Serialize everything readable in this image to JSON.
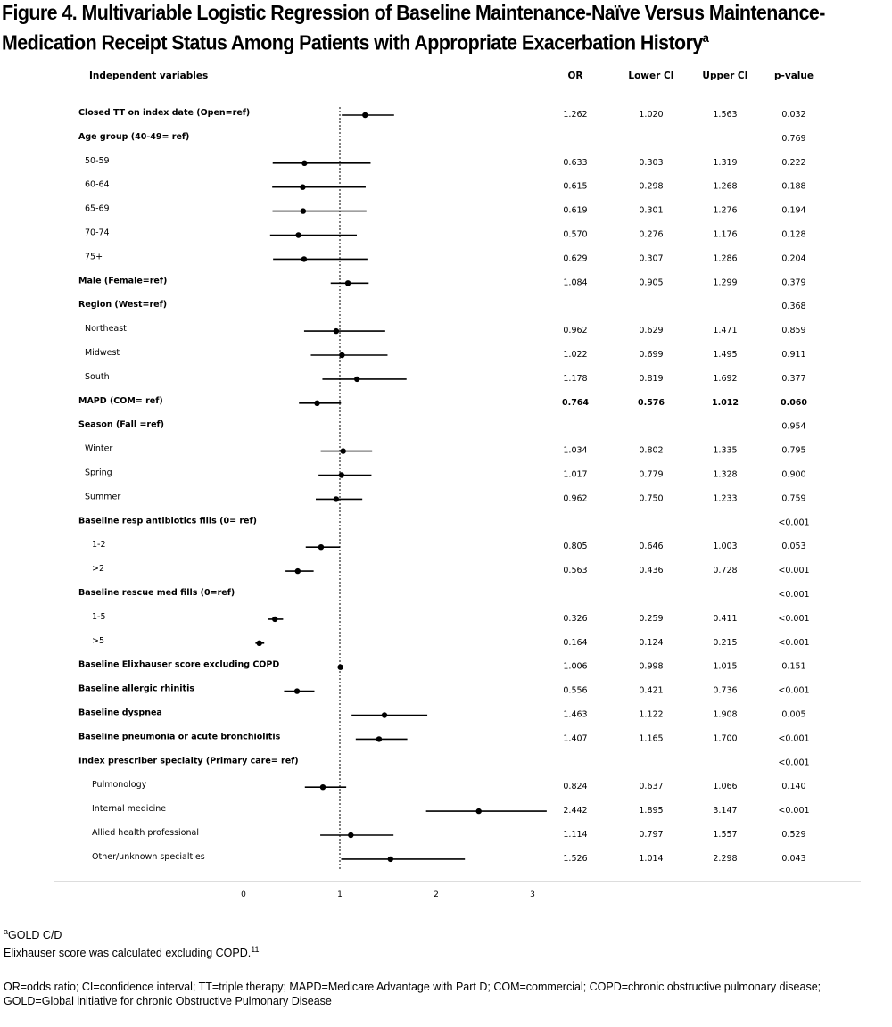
{
  "figure": {
    "title_line1": "Figure 4. Multivariable Logistic Regression of Baseline Maintenance-Naïve Versus Maintenance-",
    "title_line2": "Medication Receipt Status Among Patients with Appropriate Exacerbation History",
    "title_sup": "a"
  },
  "footnotes": {
    "a_sup": "a",
    "a_text": "GOLD C/D",
    "elix_text": "Elixhauser score was calculated excluding COPD.",
    "elix_sup": "11",
    "abbrev": "OR=odds ratio; CI=confidence interval; TT=triple therapy; MAPD=Medicare Advantage with Part D; COM=commercial; COPD=chronic obstructive pulmonary disease; GOLD=Global initiative for chronic Obstructive Pulmonary Disease"
  },
  "chart_data": {
    "type": "forest",
    "columns": [
      "Independent variables",
      "OR",
      "Lower CI",
      "Upper CI",
      "p-value"
    ],
    "reference_line": 1,
    "xlim": [
      0,
      3
    ],
    "x_ticks": [
      "0",
      "1",
      "2",
      "3"
    ],
    "rows": [
      {
        "label": "Closed TT on index date (Open=ref)",
        "bold": true,
        "indent": 0,
        "or": "1.262",
        "lower": "1.020",
        "upper": "1.563",
        "p": "0.032"
      },
      {
        "label": "Age  group  (40-49= ref)",
        "bold": true,
        "indent": 0,
        "or": "",
        "lower": "",
        "upper": "",
        "p": "0.769"
      },
      {
        "label": "50-59",
        "bold": false,
        "indent": 1,
        "or": "0.633",
        "lower": "0.303",
        "upper": "1.319",
        "p": "0.222"
      },
      {
        "label": "60-64",
        "bold": false,
        "indent": 1,
        "or": "0.615",
        "lower": "0.298",
        "upper": "1.268",
        "p": "0.188"
      },
      {
        "label": "65-69",
        "bold": false,
        "indent": 1,
        "or": "0.619",
        "lower": "0.301",
        "upper": "1.276",
        "p": "0.194"
      },
      {
        "label": "70-74",
        "bold": false,
        "indent": 1,
        "or": "0.570",
        "lower": "0.276",
        "upper": "1.176",
        "p": "0.128"
      },
      {
        "label": "75+",
        "bold": false,
        "indent": 1,
        "or": "0.629",
        "lower": "0.307",
        "upper": "1.286",
        "p": "0.204"
      },
      {
        "label": "Male (Female=ref)",
        "bold": true,
        "indent": 0,
        "or": "1.084",
        "lower": "0.905",
        "upper": "1.299",
        "p": "0.379"
      },
      {
        "label": "Region (West=ref)",
        "bold": true,
        "indent": 0,
        "or": "",
        "lower": "",
        "upper": "",
        "p": "0.368"
      },
      {
        "label": "Northeast",
        "bold": false,
        "indent": 1,
        "or": "0.962",
        "lower": "0.629",
        "upper": "1.471",
        "p": "0.859"
      },
      {
        "label": "Midwest",
        "bold": false,
        "indent": 1,
        "or": "1.022",
        "lower": "0.699",
        "upper": "1.495",
        "p": "0.911"
      },
      {
        "label": "South",
        "bold": false,
        "indent": 1,
        "or": "1.178",
        "lower": "0.819",
        "upper": "1.692",
        "p": "0.377"
      },
      {
        "label": "MAPD (COM= ref)",
        "bold": true,
        "indent": 0,
        "or": "0.764",
        "lower": "0.576",
        "upper": "1.012",
        "p": "0.060",
        "bold_values": true
      },
      {
        "label": "Season (Fall =ref)",
        "bold": true,
        "indent": 0,
        "or": "",
        "lower": "",
        "upper": "",
        "p": "0.954"
      },
      {
        "label": "Winter",
        "bold": false,
        "indent": 1,
        "or": "1.034",
        "lower": "0.802",
        "upper": "1.335",
        "p": "0.795"
      },
      {
        "label": "Spring",
        "bold": false,
        "indent": 1,
        "or": "1.017",
        "lower": "0.779",
        "upper": "1.328",
        "p": "0.900"
      },
      {
        "label": "Summer",
        "bold": false,
        "indent": 1,
        "or": "0.962",
        "lower": "0.750",
        "upper": "1.233",
        "p": "0.759"
      },
      {
        "label": "Baseline resp antibiotics fills (0= ref)",
        "bold": true,
        "indent": 0,
        "or": "",
        "lower": "",
        "upper": "",
        "p": "<0.001"
      },
      {
        "label": "1-2",
        "bold": false,
        "indent": 2,
        "or": "0.805",
        "lower": "0.646",
        "upper": "1.003",
        "p": "0.053"
      },
      {
        "label": ">2",
        "bold": false,
        "indent": 2,
        "or": "0.563",
        "lower": "0.436",
        "upper": "0.728",
        "p": "<0.001"
      },
      {
        "label": "Baseline rescue med fills (0=ref)",
        "bold": true,
        "indent": 0,
        "or": "",
        "lower": "",
        "upper": "",
        "p": "<0.001"
      },
      {
        "label": "1-5",
        "bold": false,
        "indent": 2,
        "or": "0.326",
        "lower": "0.259",
        "upper": "0.411",
        "p": "<0.001"
      },
      {
        "label": ">5",
        "bold": false,
        "indent": 2,
        "or": "0.164",
        "lower": "0.124",
        "upper": "0.215",
        "p": "<0.001"
      },
      {
        "label": "Baseline Elixhauser score excluding COPD",
        "bold": true,
        "indent": 0,
        "or": "1.006",
        "lower": "0.998",
        "upper": "1.015",
        "p": "0.151"
      },
      {
        "label": "Baseline allergic rhinitis",
        "bold": true,
        "indent": 0,
        "or": "0.556",
        "lower": "0.421",
        "upper": "0.736",
        "p": "<0.001"
      },
      {
        "label": "Baseline dyspnea",
        "bold": true,
        "indent": 0,
        "or": "1.463",
        "lower": "1.122",
        "upper": "1.908",
        "p": "0.005"
      },
      {
        "label": "Baseline pneumonia or acute bronchiolitis",
        "bold": true,
        "indent": 0,
        "or": "1.407",
        "lower": "1.165",
        "upper": "1.700",
        "p": "<0.001"
      },
      {
        "label": "Index prescriber specialty (Primary care= ref)",
        "bold": true,
        "indent": 0,
        "or": "",
        "lower": "",
        "upper": "",
        "p": "<0.001"
      },
      {
        "label": "Pulmonology",
        "bold": false,
        "indent": 2,
        "or": "0.824",
        "lower": "0.637",
        "upper": "1.066",
        "p": "0.140"
      },
      {
        "label": "Internal medicine",
        "bold": false,
        "indent": 2,
        "or": "2.442",
        "lower": "1.895",
        "upper": "3.147",
        "p": "<0.001"
      },
      {
        "label": "Allied health professional",
        "bold": false,
        "indent": 2,
        "or": "1.114",
        "lower": "0.797",
        "upper": "1.557",
        "p": "0.529"
      },
      {
        "label": "Other/unknown specialties",
        "bold": false,
        "indent": 2,
        "or": "1.526",
        "lower": "1.014",
        "upper": "2.298",
        "p": "0.043"
      }
    ]
  }
}
